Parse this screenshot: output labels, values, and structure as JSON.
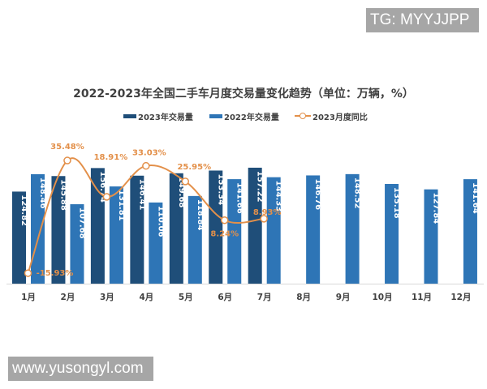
{
  "watermarks": {
    "top": "TG: MYYJJPP",
    "bottom": "www.yusongyl.com"
  },
  "colors": {
    "bar_2023": "#1f4e79",
    "bar_2022": "#2e75b6",
    "line": "#e3904a",
    "line_label": "#e3904a",
    "title": "#404040",
    "axis": "#d9d9d9"
  },
  "chart_data": {
    "type": "bar",
    "title": "2022-2023年全国二手车月度交易量变化趋势（单位：万辆，%）",
    "xlabel": "",
    "ylabel": "",
    "categories": [
      "1月",
      "2月",
      "3月",
      "4月",
      "5月",
      "6月",
      "7月",
      "8月",
      "9月",
      "10月",
      "11月",
      "12月"
    ],
    "series": [
      {
        "name": "2023年交易量",
        "type": "bar",
        "values": [
          124.82,
          145.88,
          156.74,
          146.41,
          149.68,
          153.34,
          157.22,
          null,
          null,
          null,
          null,
          null
        ]
      },
      {
        "name": "2022年交易量",
        "type": "bar",
        "values": [
          148.46,
          107.68,
          131.81,
          110.06,
          118.84,
          141.66,
          144.33,
          146.76,
          148.52,
          135.18,
          127.84,
          141.64
        ]
      },
      {
        "name": "2023月度同比",
        "type": "line",
        "unit": "%",
        "values": [
          -15.93,
          35.48,
          18.91,
          33.03,
          25.95,
          8.24,
          8.93,
          null,
          null,
          null,
          null,
          null
        ],
        "labels": [
          "-15.93%",
          "35.48%",
          "18.91%",
          "33.03%",
          "25.95%",
          "8.24%",
          "8.93%"
        ]
      }
    ],
    "legend": [
      "2023年交易量",
      "2022年交易量",
      "2023月度同比"
    ],
    "legend_position": "top",
    "grid": false,
    "value_labels": "inside bars, vertical"
  }
}
